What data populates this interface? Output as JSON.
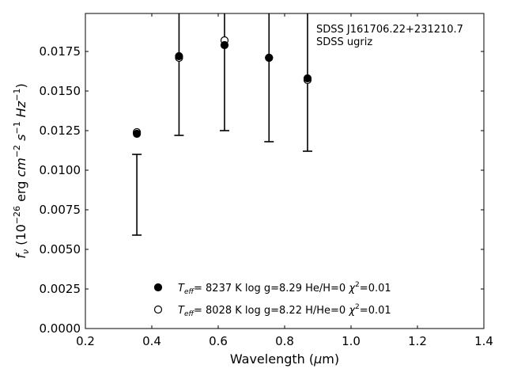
{
  "chart_data": {
    "type": "scatter",
    "xlim": [
      0.2,
      1.4
    ],
    "ylim": [
      0.0,
      0.0199
    ],
    "xticks": [
      0.2,
      0.4,
      0.6,
      0.8,
      1.0,
      1.2,
      1.4
    ],
    "xtick_labels": [
      "0.2",
      "0.4",
      "0.6",
      "0.8",
      "1.0",
      "1.2",
      "1.4"
    ],
    "yticks": [
      0.0,
      0.0025,
      0.005,
      0.0075,
      0.01,
      0.0125,
      0.015,
      0.0175
    ],
    "ytick_labels": [
      "0.0000",
      "0.0025",
      "0.0050",
      "0.0075",
      "0.0100",
      "0.0125",
      "0.0150",
      "0.0175"
    ],
    "xlabel": "Wavelength (μm)",
    "ylabel": "f_ν (10^-26 erg cm^-2 s^-1 Hz^-1)",
    "grid": false,
    "legend_placement": "lower-center",
    "annotation": [
      "SDSS J161706.22+231210.7",
      "SDSS ugriz"
    ],
    "errorbars": [
      {
        "x": 0.355,
        "low": 0.0059,
        "high": 0.011
      },
      {
        "x": 0.482,
        "low": 0.0122,
        "high": 0.0199
      },
      {
        "x": 0.619,
        "low": 0.0125,
        "high": 0.0199
      },
      {
        "x": 0.753,
        "low": 0.0118,
        "high": 0.0199
      },
      {
        "x": 0.869,
        "low": 0.0112,
        "high": 0.0199
      }
    ],
    "series": [
      {
        "marker": "filled-circle",
        "legend": {
          "teff": "8237",
          "logg": "8.29",
          "comp": "He/H=0",
          "chi2": "0.01"
        },
        "x": [
          0.355,
          0.482,
          0.619,
          0.753,
          0.869
        ],
        "y": [
          0.0123,
          0.0172,
          0.0179,
          0.0171,
          0.0158
        ]
      },
      {
        "marker": "open-circle",
        "legend": {
          "teff": "8028",
          "logg": "8.22",
          "comp": "H/He=0",
          "chi2": "0.01"
        },
        "x": [
          0.355,
          0.482,
          0.619,
          0.753,
          0.869
        ],
        "y": [
          0.0124,
          0.0171,
          0.0182,
          0.0171,
          0.0157
        ]
      }
    ]
  }
}
